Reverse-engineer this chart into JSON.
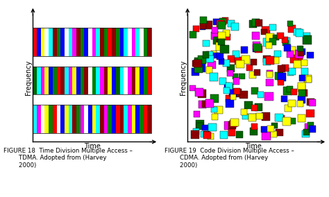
{
  "fig_width": 4.74,
  "fig_height": 2.84,
  "dpi": 100,
  "background": "#ffffff",
  "band_top_colors": [
    "red",
    "blue",
    "yellow",
    "white",
    "cyan",
    "darkred",
    "green",
    "blue",
    "white",
    "cyan",
    "magenta",
    "darkred",
    "green",
    "blue",
    "white",
    "magenta",
    "cyan",
    "darkred",
    "green",
    "red",
    "darkred",
    "green",
    "blue",
    "cyan",
    "white",
    "magenta",
    "cyan",
    "white",
    "green",
    "darkred"
  ],
  "band_mid_colors": [
    "darkgreen",
    "cyan",
    "magenta",
    "yellow",
    "blue",
    "green",
    "red",
    "darkred",
    "cyan",
    "magenta",
    "yellow",
    "blue",
    "green",
    "darkred",
    "white",
    "green",
    "cyan",
    "magenta",
    "darkred",
    "yellow",
    "blue",
    "darkgreen",
    "cyan",
    "white",
    "magenta",
    "darkred",
    "yellow",
    "blue",
    "green",
    "red"
  ],
  "band_bot_colors": [
    "cyan",
    "magenta",
    "white",
    "yellow",
    "green",
    "red",
    "white",
    "blue",
    "yellow",
    "cyan",
    "darkred",
    "green",
    "magenta",
    "white",
    "blue",
    "yellow",
    "cyan",
    "darkred",
    "magenta",
    "green",
    "blue",
    "red",
    "darkred",
    "cyan",
    "magenta",
    "yellow",
    "blue",
    "green",
    "red",
    "darkred"
  ],
  "cdma_colors": [
    "red",
    "green",
    "blue",
    "yellow",
    "cyan",
    "magenta",
    "darkred",
    "darkgreen"
  ],
  "caption_left": "FIGURE 18  Time Division Multiple Access –\n        TDMA. Adopted from (Harvey\n        2000)",
  "caption_right": "FIGURE 19  Code Division Multiple Access –\n        CDMA. Adopted from (Harvey\n        2000)",
  "xlabel": "Time",
  "ylabel": "Frequency",
  "caption_fontsize": 6.2,
  "axis_label_fontsize": 7,
  "n_cdma_squares": 200,
  "sq_size": 0.055
}
